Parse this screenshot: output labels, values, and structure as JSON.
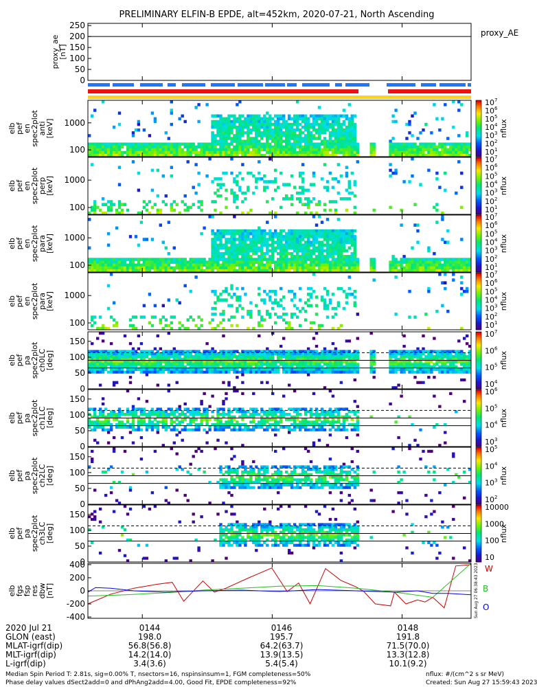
{
  "title": "PRELIMINARY ELFIN-B EPDE, alt=452km, 2020-07-21, North Ascending",
  "colors": {
    "blue_bar": "#1e78ff",
    "red_bar": "#ee1111",
    "yellow_bar": "#ffd21a",
    "w_line": "#cc0000",
    "b_line": "#22bb22",
    "o_line": "#0000ee"
  },
  "chart_data": [
    {
      "type": "line",
      "id": "proxy_ae",
      "ylabel": [
        "proxy_ae",
        "[nT]"
      ],
      "yticks": [
        "250",
        "200",
        "150",
        "100",
        "50",
        "0"
      ],
      "ylim": [
        0,
        260
      ],
      "hline": 200,
      "legend": [
        "proxy_AE"
      ],
      "series": [
        {
          "name": "proxy_AE",
          "values": []
        }
      ]
    },
    {
      "type": "heatmap",
      "id": "pef_en_spec2plot_anti",
      "ylabel": [
        "elb",
        "pef",
        "en",
        "spec2plot",
        "anti",
        "[keV]"
      ],
      "yscale": "log",
      "yticks": [
        "1000",
        "100"
      ],
      "colorbar_label": "nflux",
      "colorbar_ticks": [
        [
          "10",
          "7"
        ],
        [
          "10",
          "6"
        ],
        [
          "10",
          "5"
        ],
        [
          "10",
          "4"
        ],
        [
          "10",
          "3"
        ],
        [
          "10",
          "2"
        ],
        [
          "10",
          "1"
        ]
      ]
    },
    {
      "type": "heatmap",
      "id": "pef_en_spec2plot_perp",
      "ylabel": [
        "elb",
        "pef",
        "en",
        "spec2plot",
        "perp",
        "[keV]"
      ],
      "yscale": "log",
      "yticks": [
        "1000",
        "100"
      ],
      "colorbar_label": "nflux",
      "colorbar_ticks": [
        [
          "10",
          "7"
        ],
        [
          "10",
          "6"
        ],
        [
          "10",
          "5"
        ],
        [
          "10",
          "4"
        ],
        [
          "10",
          "3"
        ],
        [
          "10",
          "2"
        ],
        [
          "10",
          "1"
        ]
      ]
    },
    {
      "type": "heatmap",
      "id": "pef_en_spec2plot_para",
      "ylabel": [
        "elb",
        "pef",
        "en",
        "spec2plot",
        "para",
        "[keV]"
      ],
      "yscale": "log",
      "yticks": [
        "1000",
        "100"
      ],
      "colorbar_label": "nflux",
      "colorbar_ticks": [
        [
          "10",
          "7"
        ],
        [
          "10",
          "6"
        ],
        [
          "10",
          "5"
        ],
        [
          "10",
          "4"
        ],
        [
          "10",
          "3"
        ],
        [
          "10",
          "2"
        ],
        [
          "10",
          "1"
        ]
      ]
    },
    {
      "type": "heatmap",
      "id": "pef_en_spec2plot_para2",
      "ylabel": [
        "elb",
        "pef",
        "en",
        "spec2plot",
        "para",
        "[keV]"
      ],
      "yscale": "log",
      "yticks": [
        "1000",
        "100"
      ],
      "colorbar_label": "nflux",
      "colorbar_ticks": [
        [
          "10",
          "7"
        ],
        [
          "10",
          "6"
        ],
        [
          "10",
          "5"
        ],
        [
          "10",
          "4"
        ],
        [
          "10",
          "3"
        ],
        [
          "10",
          "2"
        ],
        [
          "10",
          "1"
        ]
      ]
    },
    {
      "type": "heatmap",
      "id": "pef_pa_spec2plot_ch0LC",
      "ylabel": [
        "elb",
        "pef",
        "pa",
        "spec2plot",
        "ch0LC",
        "[deg]"
      ],
      "yticks": [
        "150",
        "100",
        "50",
        "0"
      ],
      "ylim": [
        0,
        180
      ],
      "dashed_line": 114,
      "solid_lines": [
        90,
        66
      ],
      "colorbar_label": "nflux",
      "colorbar_ticks": [
        [
          "10",
          "7"
        ],
        [
          "10",
          "6"
        ],
        [
          "10",
          "5"
        ],
        [
          "10",
          "4"
        ]
      ]
    },
    {
      "type": "heatmap",
      "id": "pef_pa_spec2plot_ch1LC",
      "ylabel": [
        "elb",
        "pef",
        "pa",
        "spec2plot",
        "ch1LC",
        "[deg]"
      ],
      "yticks": [
        "150",
        "100",
        "50",
        "0"
      ],
      "ylim": [
        0,
        180
      ],
      "dashed_line": 114,
      "solid_lines": [
        90,
        66
      ],
      "colorbar_label": "nflux",
      "colorbar_ticks": [
        [
          "10",
          "6"
        ],
        [
          "10",
          "5"
        ],
        [
          "10",
          "4"
        ],
        [
          "10",
          "3"
        ]
      ]
    },
    {
      "type": "heatmap",
      "id": "pef_pa_spec2plot_ch2LC",
      "ylabel": [
        "elb",
        "pef",
        "pa",
        "spec2plot",
        "ch2LC",
        "[deg]"
      ],
      "yticks": [
        "150",
        "100",
        "50",
        "0"
      ],
      "ylim": [
        0,
        180
      ],
      "dashed_line": 114,
      "solid_lines": [
        90,
        66
      ],
      "colorbar_label": "nflux",
      "colorbar_ticks": [
        [
          "10",
          "5"
        ],
        [
          "10",
          "4"
        ],
        [
          "10",
          "3"
        ],
        [
          "10",
          "2"
        ]
      ]
    },
    {
      "type": "heatmap",
      "id": "pef_pa_spec2plot_ch3LC",
      "ylabel": [
        "elb",
        "pef",
        "pa",
        "spec2plot",
        "ch3LC",
        "[deg]"
      ],
      "yticks": [
        "150",
        "100",
        "50",
        "0"
      ],
      "ylim": [
        0,
        180
      ],
      "dashed_line": 114,
      "solid_lines": [
        90,
        66
      ],
      "colorbar_label": "nflux",
      "colorbar_ticks": [
        [
          "10000",
          ""
        ],
        [
          "1000",
          ""
        ],
        [
          "100",
          ""
        ],
        [
          "10",
          ""
        ]
      ]
    },
    {
      "type": "line",
      "id": "fgs_res_dbw",
      "ylabel": [
        "elb",
        "fgs",
        "fsp",
        "res",
        "dbw",
        "[nT]"
      ],
      "yticks": [
        "400",
        "200",
        "0",
        "-200",
        "-400"
      ],
      "ylim": [
        -420,
        420
      ],
      "x_tick_labels": [
        "0144",
        "0146",
        "0148"
      ],
      "series": [
        {
          "name": "W",
          "x": [
            0.0,
            0.06,
            0.12,
            0.18,
            0.22,
            0.25,
            0.3,
            0.33,
            0.36,
            0.42,
            0.48,
            0.52,
            0.55,
            0.58,
            0.62,
            0.66,
            0.7,
            0.72,
            0.75,
            0.79,
            0.8,
            0.83,
            0.86,
            0.88,
            0.9,
            0.93,
            0.96,
            1.0
          ],
          "values": [
            -200,
            -50,
            40,
            100,
            130,
            -160,
            150,
            -20,
            40,
            200,
            350,
            -10,
            120,
            -200,
            340,
            160,
            60,
            -10,
            -200,
            -230,
            -20,
            -200,
            -140,
            -170,
            -100,
            -260,
            380,
            400
          ]
        },
        {
          "name": "B",
          "x": [
            0.0,
            0.1,
            0.2,
            0.3,
            0.4,
            0.5,
            0.6,
            0.7,
            0.8,
            0.9,
            1.0
          ],
          "values": [
            -80,
            -60,
            -30,
            10,
            40,
            70,
            80,
            40,
            -20,
            -100,
            420
          ]
        },
        {
          "name": "O",
          "x": [
            0.0,
            0.02,
            0.06,
            0.12,
            0.2,
            0.3,
            0.4,
            0.5,
            0.6,
            0.7,
            0.8,
            0.86,
            0.9,
            0.94,
            1.0
          ],
          "values": [
            -20,
            50,
            40,
            0,
            -20,
            0,
            10,
            -10,
            20,
            0,
            -20,
            0,
            -40,
            -40,
            -60
          ]
        }
      ]
    }
  ],
  "timestamp_vertical": "Sun Aug 27 06:38:43 2023",
  "footer": {
    "rows": [
      {
        "label": "2020 Jul 21",
        "v1": "0144",
        "v2": "0146",
        "v3": "0148"
      },
      {
        "label": "GLON (east)",
        "v1": "198.0",
        "v2": "195.7",
        "v3": "191.8"
      },
      {
        "label": "MLAT-igrf(dip)",
        "v1": "56.8(56.8)",
        "v2": "64.2(63.7)",
        "v3": "71.5(70.0)"
      },
      {
        "label": "MLT-igrf(dip)",
        "v1": "14.2(14.0)",
        "v2": "13.9(13.5)",
        "v3": "13.3(12.8)"
      },
      {
        "label": "L-igrf(dip)",
        "v1": "3.4(3.6)",
        "v2": "5.4(5.4)",
        "v3": "10.1(9.2)"
      }
    ],
    "note1": "Median Spin Period T: 2.81s, sig=0.00% T, nsectors=16, nspinsinsum=1, FGM completeness=50%",
    "note2": "Phase delay values dSect2add=0 and dPhAng2add=4.00, Good Fit, EPDE completeness=92%",
    "units": "nflux: #/(cm^2 s sr MeV)",
    "created": "Created: Sun Aug 27 15:59:43 2023"
  }
}
